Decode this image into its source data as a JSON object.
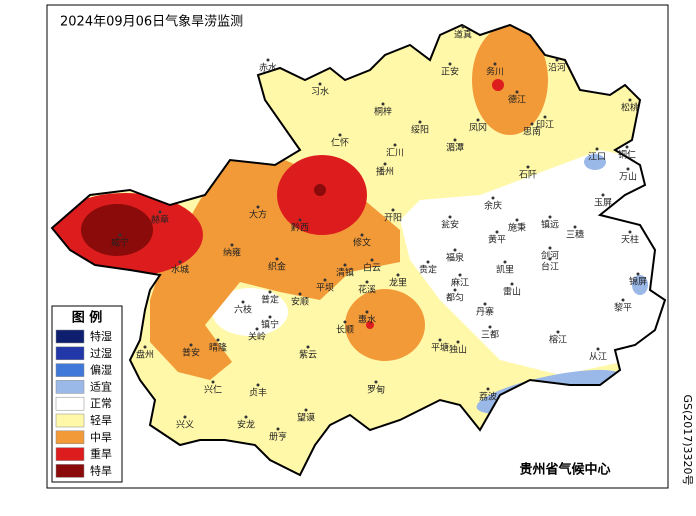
{
  "title": "2024年09月06日气象旱涝监测",
  "legend": {
    "title": "图 例",
    "items": [
      {
        "label": "特湿",
        "color": "#0d1f6e"
      },
      {
        "label": "过湿",
        "color": "#2238a8"
      },
      {
        "label": "偏湿",
        "color": "#3f78d8"
      },
      {
        "label": "适宜",
        "color": "#9ab8e8"
      },
      {
        "label": "正常",
        "color": "#ffffff"
      },
      {
        "label": "轻旱",
        "color": "#fff8a8"
      },
      {
        "label": "中旱",
        "color": "#f29a38"
      },
      {
        "label": "重旱",
        "color": "#dd1d1d"
      },
      {
        "label": "特旱",
        "color": "#8b0a0a"
      }
    ]
  },
  "places": [
    "道真",
    "务川",
    "正安",
    "沿河",
    "赤水",
    "习水",
    "德江",
    "桐梓",
    "绥阳",
    "凤冈",
    "印江",
    "思南",
    "松桃",
    "湄潭",
    "汇川",
    "仁怀",
    "江口",
    "铜仁",
    "播州",
    "石阡",
    "万山",
    "余庆",
    "威宁",
    "赫章",
    "大方",
    "黔西",
    "开阳",
    "瓮安",
    "施秉",
    "镇远",
    "玉屏",
    "三穗",
    "天柱",
    "黄平",
    "修文",
    "纳雍",
    "织金",
    "清镇",
    "白云",
    "龙里",
    "贵定",
    "福泉",
    "凯里",
    "剑河",
    "台江",
    "锦屏",
    "麻江",
    "雷山",
    "黎平",
    "都匀",
    "丹寨",
    "水城",
    "六枝",
    "普定",
    "平坝",
    "花溪",
    "安顺",
    "镇宁",
    "长顺",
    "惠水",
    "关岭",
    "三都",
    "榕江",
    "盘州",
    "晴隆",
    "普安",
    "紫云",
    "平塘",
    "独山",
    "从江",
    "兴仁",
    "贞丰",
    "罗甸",
    "荔波",
    "兴义",
    "安龙",
    "望谟",
    "册亨"
  ],
  "footer": "贵州省气候中心",
  "side_note": "GS(2017)3320号"
}
